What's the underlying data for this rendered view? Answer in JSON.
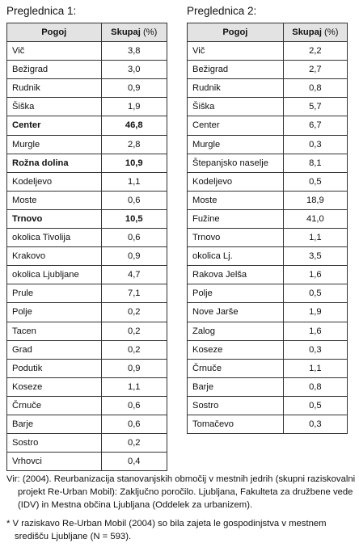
{
  "table1": {
    "caption": "Preglednica 1:",
    "header_name": "Pogoj",
    "header_value": "Skupaj",
    "header_unit": "(%)",
    "rows": [
      {
        "name": "Vič",
        "value": "3,8",
        "bold": false
      },
      {
        "name": "Bežigrad",
        "value": "3,0",
        "bold": false
      },
      {
        "name": "Rudnik",
        "value": "0,9",
        "bold": false
      },
      {
        "name": "Šiška",
        "value": "1,9",
        "bold": false
      },
      {
        "name": "Center",
        "value": "46,8",
        "bold": true
      },
      {
        "name": "Murgle",
        "value": "2,8",
        "bold": false
      },
      {
        "name": "Rožna dolina",
        "value": "10,9",
        "bold": true
      },
      {
        "name": "Kodeljevo",
        "value": "1,1",
        "bold": false
      },
      {
        "name": "Moste",
        "value": "0,6",
        "bold": false
      },
      {
        "name": "Trnovo",
        "value": "10,5",
        "bold": true
      },
      {
        "name": "okolica Tivolija",
        "value": "0,6",
        "bold": false
      },
      {
        "name": "Krakovo",
        "value": "0,9",
        "bold": false
      },
      {
        "name": "okolica Ljubljane",
        "value": "4,7",
        "bold": false
      },
      {
        "name": "Prule",
        "value": "7,1",
        "bold": false
      },
      {
        "name": "Polje",
        "value": "0,2",
        "bold": false
      },
      {
        "name": "Tacen",
        "value": "0,2",
        "bold": false
      },
      {
        "name": "Grad",
        "value": "0,2",
        "bold": false
      },
      {
        "name": "Podutik",
        "value": "0,9",
        "bold": false
      },
      {
        "name": "Koseze",
        "value": "1,1",
        "bold": false
      },
      {
        "name": "Črnuče",
        "value": "0,6",
        "bold": false
      },
      {
        "name": "Barje",
        "value": "0,6",
        "bold": false
      },
      {
        "name": "Sostro",
        "value": "0,2",
        "bold": false
      },
      {
        "name": "Vrhovci",
        "value": "0,4",
        "bold": false
      }
    ]
  },
  "table2": {
    "caption": "Preglednica 2:",
    "header_name": "Pogoj",
    "header_value": "Skupaj",
    "header_unit": "(%)",
    "rows": [
      {
        "name": "Vič",
        "value": "2,2",
        "bold": false
      },
      {
        "name": "Bežigrad",
        "value": "2,7",
        "bold": false
      },
      {
        "name": "Rudnik",
        "value": "0,8",
        "bold": false
      },
      {
        "name": "Šiška",
        "value": "5,7",
        "bold": false
      },
      {
        "name": "Center",
        "value": "6,7",
        "bold": false
      },
      {
        "name": "Murgle",
        "value": "0,3",
        "bold": false
      },
      {
        "name": "Štepanjsko naselje",
        "value": "8,1",
        "bold": false
      },
      {
        "name": "Kodeljevo",
        "value": "0,5",
        "bold": false
      },
      {
        "name": "Moste",
        "value": "18,9",
        "bold": false
      },
      {
        "name": "Fužine",
        "value": "41,0",
        "bold": false
      },
      {
        "name": "Trnovo",
        "value": "1,1",
        "bold": false
      },
      {
        "name": "okolica Lj.",
        "value": "3,5",
        "bold": false
      },
      {
        "name": "Rakova Jelša",
        "value": "1,6",
        "bold": false
      },
      {
        "name": "Polje",
        "value": "0,5",
        "bold": false
      },
      {
        "name": "Nove Jarše",
        "value": "1,9",
        "bold": false
      },
      {
        "name": "Zalog",
        "value": "1,6",
        "bold": false
      },
      {
        "name": "Koseze",
        "value": "0,3",
        "bold": false
      },
      {
        "name": "Črnuče",
        "value": "1,1",
        "bold": false
      },
      {
        "name": "Barje",
        "value": "0,8",
        "bold": false
      },
      {
        "name": "Sostro",
        "value": "0,5",
        "bold": false
      },
      {
        "name": "Tomačevo",
        "value": "0,3",
        "bold": false
      }
    ]
  },
  "source": "Vir: (2004). Reurbanizacija stanovanjskih območij v mestnih jedrih (skupni raziskovalni projekt Re-Urban Mobil): Zaključno poročilo. Ljubljana, Fakulteta za družbene vede (IDV) in Mestna občina Ljubljana (Oddelek za urbanizem).",
  "footnote": "* V raziskavo Re-Urban Mobil (2004) so bila zajeta le gospodinjstva v mestnem središču Ljubljane (N = 593)."
}
